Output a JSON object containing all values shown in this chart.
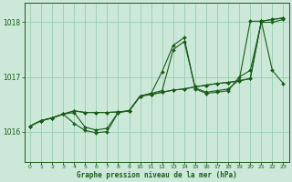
{
  "background_color": "#cce8d8",
  "grid_color": "#99ccb0",
  "line_color": "#1a5c1a",
  "marker_color": "#1a5c1a",
  "xlabel": "Graphe pression niveau de la mer (hPa)",
  "xlim": [
    -0.5,
    23.5
  ],
  "ylim": [
    1015.45,
    1018.35
  ],
  "yticks": [
    1016,
    1017,
    1018
  ],
  "xticks": [
    0,
    1,
    2,
    3,
    4,
    5,
    6,
    7,
    8,
    9,
    10,
    11,
    12,
    13,
    14,
    15,
    16,
    17,
    18,
    19,
    20,
    21,
    22,
    23
  ],
  "series": [
    [
      1016.1,
      1016.2,
      1016.25,
      1016.32,
      1016.38,
      1016.35,
      1016.35,
      1016.35,
      1016.36,
      1016.38,
      1016.65,
      1016.68,
      1016.72,
      1016.76,
      1016.78,
      1016.82,
      1016.85,
      1016.88,
      1016.9,
      1016.93,
      1016.97,
      1018.02,
      1018.05,
      1018.08
    ],
    [
      1016.1,
      1016.2,
      1016.25,
      1016.32,
      1016.35,
      1016.08,
      1016.03,
      1016.06,
      1016.35,
      1016.38,
      1016.65,
      1016.7,
      1016.75,
      1017.5,
      1017.65,
      1016.8,
      1016.72,
      1016.75,
      1016.78,
      1016.95,
      1018.02,
      1018.02,
      1017.12,
      1016.88
    ],
    [
      1016.1,
      1016.2,
      1016.25,
      1016.32,
      1016.15,
      1016.02,
      1015.98,
      1016.0,
      1016.35,
      1016.38,
      1016.65,
      1016.7,
      1017.1,
      1017.58,
      1017.72,
      1016.78,
      1016.7,
      1016.72,
      1016.75,
      1017.0,
      1017.12,
      1018.0,
      1018.0,
      1018.05
    ],
    [
      1016.1,
      1016.2,
      1016.25,
      1016.32,
      1016.38,
      1016.35,
      1016.35,
      1016.35,
      1016.36,
      1016.38,
      1016.65,
      1016.68,
      1016.72,
      1016.76,
      1016.78,
      1016.82,
      1016.85,
      1016.88,
      1016.9,
      1016.93,
      1016.97,
      1018.02,
      1018.05,
      1018.08
    ]
  ]
}
